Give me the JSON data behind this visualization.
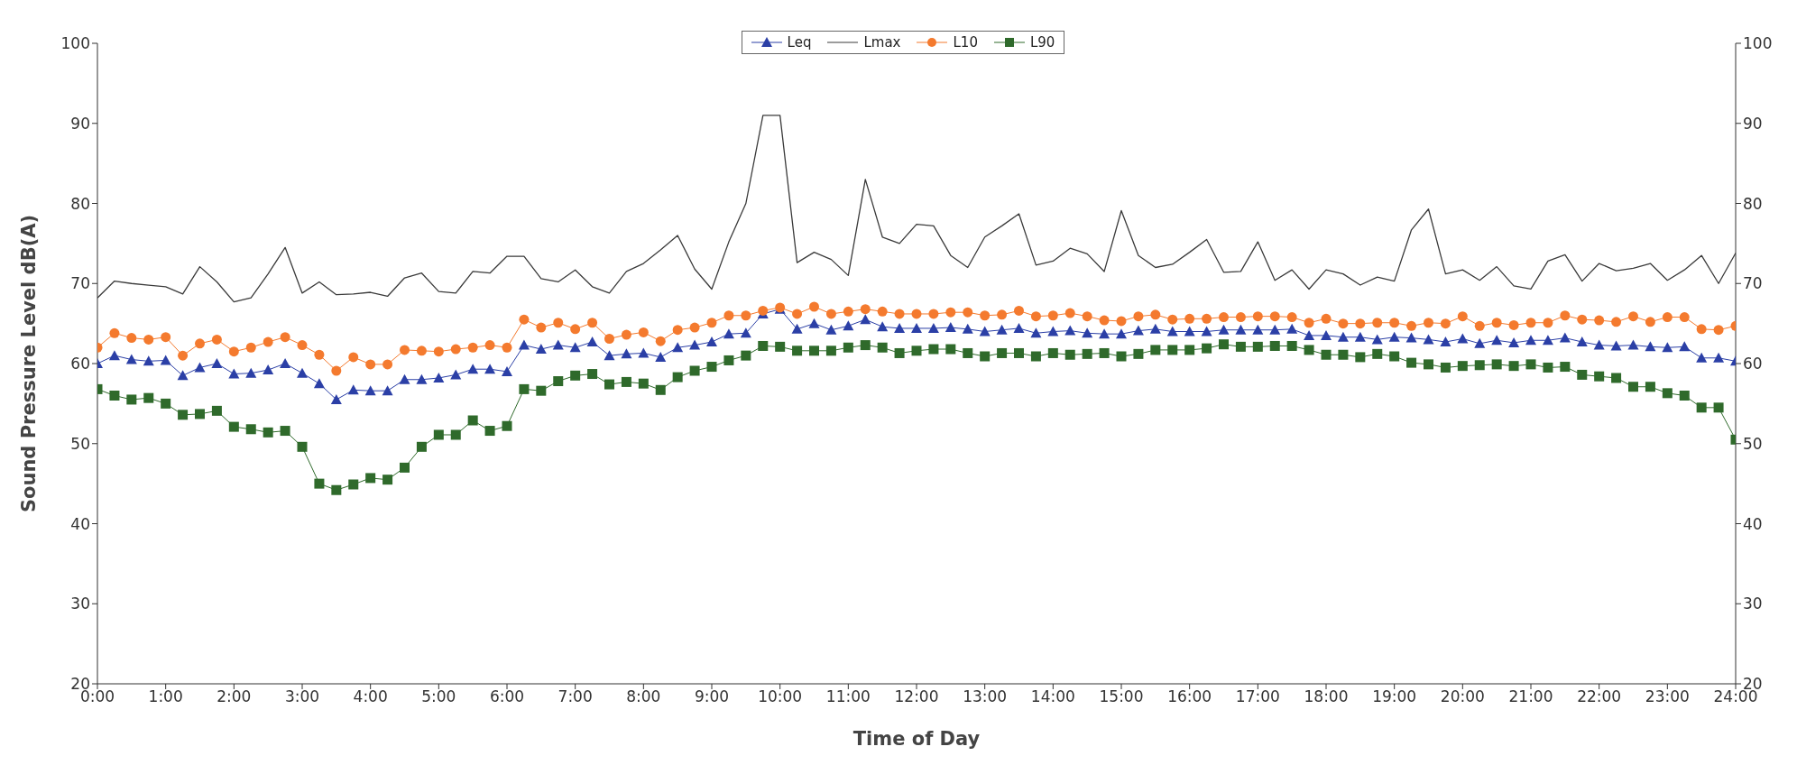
{
  "chart_data": {
    "type": "line",
    "xlabel": "Time of Day",
    "ylabel": "Sound Pressure Level dB(A)",
    "x": [
      0,
      0.25,
      0.5,
      0.75,
      1,
      1.25,
      1.5,
      1.75,
      2,
      2.25,
      2.5,
      2.75,
      3,
      3.25,
      3.5,
      3.75,
      4,
      4.25,
      4.5,
      4.75,
      5,
      5.25,
      5.5,
      5.75,
      6,
      6.25,
      6.5,
      6.75,
      7,
      7.25,
      7.5,
      7.75,
      8,
      8.25,
      8.5,
      8.75,
      9,
      9.25,
      9.5,
      9.75,
      10,
      10.25,
      10.5,
      10.75,
      11,
      11.25,
      11.5,
      11.75,
      12,
      12.25,
      12.5,
      12.75,
      13,
      13.25,
      13.5,
      13.75,
      14,
      14.25,
      14.5,
      14.75,
      15,
      15.25,
      15.5,
      15.75,
      16,
      16.25,
      16.5,
      16.75,
      17,
      17.25,
      17.5,
      17.75,
      18,
      18.25,
      18.5,
      18.75,
      19,
      19.25,
      19.5,
      19.75,
      20,
      20.25,
      20.5,
      20.75,
      21,
      21.25,
      21.5,
      21.75,
      22,
      22.25,
      22.5,
      22.75,
      23,
      23.25,
      23.5,
      23.75,
      24
    ],
    "series": [
      {
        "name": "Leq",
        "color": "#2b3fa6",
        "marker": "triangle",
        "values": [
          60,
          61,
          60.5,
          60.3,
          60.4,
          58.5,
          59.5,
          60,
          58.7,
          58.8,
          59.2,
          60,
          58.8,
          57.5,
          55.5,
          56.7,
          56.6,
          56.6,
          58,
          58,
          58.2,
          58.6,
          59.3,
          59.3,
          59,
          62.3,
          61.8,
          62.3,
          62,
          62.7,
          61,
          61.2,
          61.3,
          60.8,
          62,
          62.3,
          62.7,
          63.7,
          63.8,
          66.2,
          66.8,
          64.3,
          65,
          64.2,
          64.7,
          65.5,
          64.6,
          64.4,
          64.4,
          64.4,
          64.5,
          64.3,
          64,
          64.2,
          64.4,
          63.8,
          64,
          64.1,
          63.8,
          63.7,
          63.7,
          64.1,
          64.3,
          64,
          64,
          64,
          64.2,
          64.2,
          64.2,
          64.2,
          64.3,
          63.5,
          63.5,
          63.3,
          63.3,
          63,
          63.3,
          63.2,
          63,
          62.7,
          63.1,
          62.5,
          62.9,
          62.6,
          62.9,
          62.9,
          63.2,
          62.7,
          62.3,
          62.2,
          62.3,
          62.1,
          62,
          62.1,
          60.7,
          60.7,
          60.3
        ]
      },
      {
        "name": "Lmax",
        "color": "#3a3a3a",
        "marker": "none",
        "values": [
          68.2,
          70.3,
          70,
          69.8,
          69.6,
          68.7,
          72.1,
          70.2,
          67.7,
          68.2,
          71.2,
          74.5,
          68.8,
          70.2,
          68.6,
          68.7,
          68.9,
          68.4,
          70.7,
          71.3,
          69,
          68.8,
          71.5,
          71.3,
          73.4,
          73.4,
          70.6,
          70.2,
          71.7,
          69.6,
          68.8,
          71.5,
          72.5,
          74.2,
          76,
          71.8,
          69.3,
          75.2,
          80,
          91,
          91,
          72.6,
          73.9,
          73,
          71,
          83,
          75.8,
          75,
          77.4,
          77.2,
          73.5,
          72,
          75.8,
          77.2,
          78.7,
          72.3,
          72.8,
          74.4,
          73.7,
          71.5,
          79.1,
          73.5,
          72,
          72.4,
          73.9,
          75.5,
          71.4,
          71.5,
          75.2,
          70.4,
          71.7,
          69.3,
          71.7,
          71.2,
          69.8,
          70.8,
          70.3,
          76.7,
          79.3,
          71.2,
          71.7,
          70.4,
          72.1,
          69.7,
          69.3,
          72.8,
          73.6,
          70.3,
          72.5,
          71.6,
          71.9,
          72.5,
          70.4,
          71.7,
          73.5,
          70,
          73.8
        ]
      },
      {
        "name": "L10",
        "color": "#f47a2e",
        "marker": "circle",
        "values": [
          62,
          63.8,
          63.2,
          63,
          63.3,
          61,
          62.5,
          63,
          61.5,
          62,
          62.7,
          63.3,
          62.3,
          61.1,
          59.1,
          60.8,
          59.9,
          59.9,
          61.7,
          61.6,
          61.5,
          61.8,
          62,
          62.3,
          62,
          65.5,
          64.5,
          65.1,
          64.3,
          65.1,
          63.1,
          63.6,
          63.9,
          62.8,
          64.2,
          64.5,
          65.1,
          66,
          66,
          66.6,
          67,
          66.2,
          67.1,
          66.2,
          66.5,
          66.8,
          66.5,
          66.2,
          66.2,
          66.2,
          66.4,
          66.4,
          66,
          66.1,
          66.6,
          65.9,
          66,
          66.3,
          65.9,
          65.4,
          65.3,
          65.9,
          66.1,
          65.5,
          65.6,
          65.6,
          65.8,
          65.8,
          65.9,
          65.9,
          65.8,
          65.1,
          65.6,
          65,
          65,
          65.1,
          65.1,
          64.7,
          65.1,
          65,
          65.9,
          64.7,
          65.1,
          64.8,
          65.1,
          65.1,
          66,
          65.5,
          65.4,
          65.2,
          65.9,
          65.2,
          65.8,
          65.8,
          64.3,
          64.2,
          64.7
        ]
      },
      {
        "name": "L90",
        "color": "#2f6a2b",
        "marker": "square",
        "values": [
          56.8,
          56,
          55.5,
          55.7,
          55,
          53.6,
          53.7,
          54.1,
          52.1,
          51.8,
          51.4,
          51.6,
          49.6,
          45,
          44.2,
          44.9,
          45.7,
          45.5,
          47,
          49.6,
          51.1,
          51.1,
          52.9,
          51.6,
          52.2,
          56.8,
          56.6,
          57.8,
          58.5,
          58.7,
          57.4,
          57.7,
          57.5,
          56.7,
          58.3,
          59.1,
          59.6,
          60.4,
          61,
          62.2,
          62.1,
          61.6,
          61.6,
          61.6,
          62,
          62.3,
          62,
          61.3,
          61.6,
          61.8,
          61.8,
          61.3,
          60.9,
          61.3,
          61.3,
          60.9,
          61.3,
          61.1,
          61.2,
          61.3,
          60.9,
          61.2,
          61.7,
          61.7,
          61.7,
          61.9,
          62.4,
          62.1,
          62.1,
          62.2,
          62.2,
          61.7,
          61.1,
          61.1,
          60.8,
          61.2,
          60.9,
          60.1,
          59.9,
          59.5,
          59.7,
          59.8,
          59.9,
          59.7,
          59.9,
          59.5,
          59.6,
          58.6,
          58.4,
          58.2,
          57.1,
          57.1,
          56.3,
          56,
          54.5,
          54.5,
          50.5
        ]
      }
    ],
    "xlim": [
      0,
      24
    ],
    "xticks": [
      {
        "value": 0,
        "label": "0:00"
      },
      {
        "value": 1,
        "label": "1:00"
      },
      {
        "value": 2,
        "label": "2:00"
      },
      {
        "value": 3,
        "label": "3:00"
      },
      {
        "value": 4,
        "label": "4:00"
      },
      {
        "value": 5,
        "label": "5:00"
      },
      {
        "value": 6,
        "label": "6:00"
      },
      {
        "value": 7,
        "label": "7:00"
      },
      {
        "value": 8,
        "label": "8:00"
      },
      {
        "value": 9,
        "label": "9:00"
      },
      {
        "value": 10,
        "label": "10:00"
      },
      {
        "value": 11,
        "label": "11:00"
      },
      {
        "value": 12,
        "label": "12:00"
      },
      {
        "value": 13,
        "label": "13:00"
      },
      {
        "value": 14,
        "label": "14:00"
      },
      {
        "value": 15,
        "label": "15:00"
      },
      {
        "value": 16,
        "label": "16:00"
      },
      {
        "value": 17,
        "label": "17:00"
      },
      {
        "value": 18,
        "label": "18:00"
      },
      {
        "value": 19,
        "label": "19:00"
      },
      {
        "value": 20,
        "label": "20:00"
      },
      {
        "value": 21,
        "label": "21:00"
      },
      {
        "value": 22,
        "label": "22:00"
      },
      {
        "value": 23,
        "label": "23:00"
      },
      {
        "value": 24,
        "label": "24:00"
      }
    ],
    "ylim": [
      20,
      100
    ],
    "yticks": [
      20,
      30,
      40,
      50,
      60,
      70,
      80,
      90,
      100
    ],
    "y2lim": [
      20,
      100
    ],
    "y2ticks": [
      20,
      30,
      40,
      50,
      60,
      70,
      80,
      90,
      100
    ],
    "legend": "top",
    "grid": false
  }
}
